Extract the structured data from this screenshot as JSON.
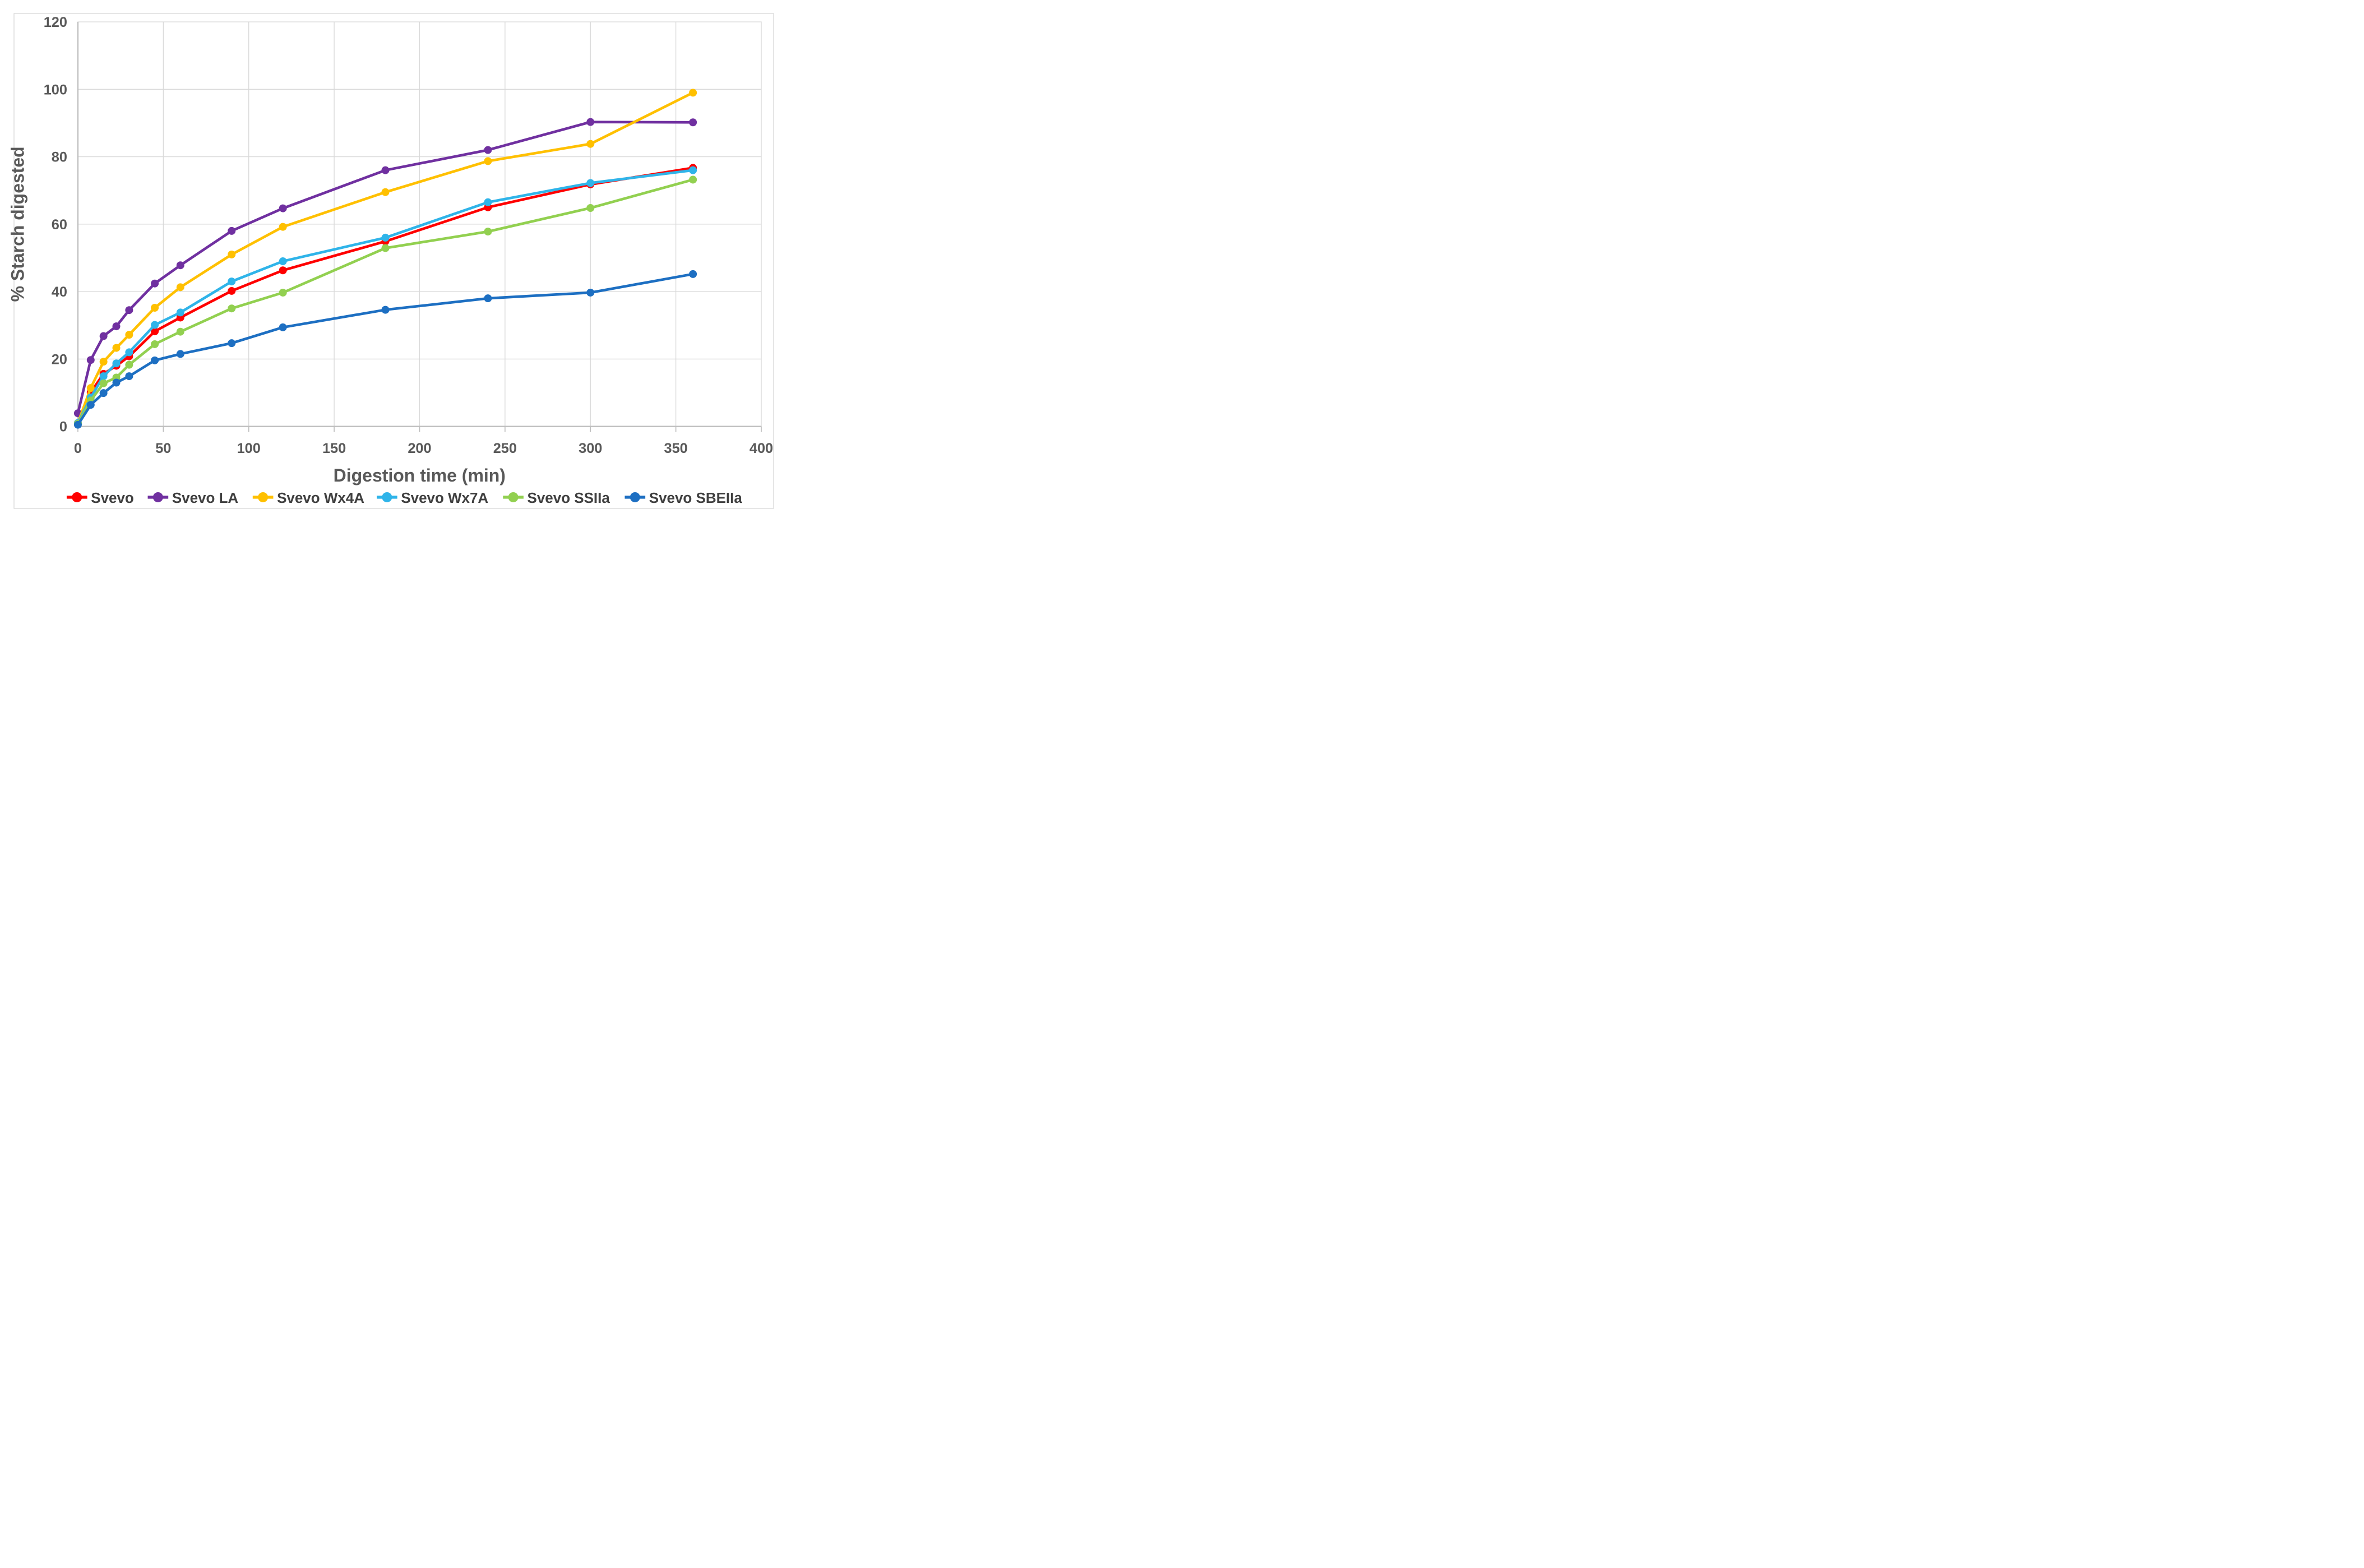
{
  "figure": {
    "description": "Starch digestibility curves of Svevo durum wheat lines"
  },
  "chart_data": {
    "type": "line",
    "title": "",
    "xlabel": "Digestion time (min)",
    "ylabel": "% Starch digested",
    "x": [
      0,
      7.5,
      15,
      22.5,
      30,
      45,
      60,
      90,
      120,
      180,
      240,
      300,
      360
    ],
    "x_ticks": [
      0,
      50,
      100,
      150,
      200,
      250,
      300,
      350,
      400
    ],
    "y_ticks": [
      0,
      20,
      40,
      60,
      80,
      100,
      120
    ],
    "xlim": [
      0,
      400
    ],
    "ylim": [
      0,
      120
    ],
    "grid": true,
    "legend_position": "bottom",
    "marker": "circle",
    "series": [
      {
        "name": "Svevo",
        "color": "#FF0000",
        "values": [
          1.0,
          10.1,
          15.6,
          18.0,
          20.8,
          28.2,
          32.3,
          40.2,
          46.3,
          54.9,
          65.0,
          71.8,
          76.7
        ]
      },
      {
        "name": "Svevo LA",
        "color": "#7030A0",
        "values": [
          3.9,
          19.7,
          26.8,
          29.7,
          34.5,
          42.4,
          47.8,
          58.0,
          64.7,
          76.0,
          82.0,
          90.3,
          90.2
        ]
      },
      {
        "name": "Svevo Wx4A",
        "color": "#FFC000",
        "values": [
          1.0,
          11.4,
          19.2,
          23.3,
          27.2,
          35.2,
          41.3,
          51.0,
          59.2,
          69.5,
          78.7,
          83.8,
          99.0
        ]
      },
      {
        "name": "Svevo Wx7A",
        "color": "#2FB4E9",
        "values": [
          1.0,
          8.6,
          14.9,
          18.7,
          22.0,
          30.1,
          33.8,
          43.0,
          49.0,
          56.0,
          66.5,
          72.2,
          76.0
        ]
      },
      {
        "name": "Svevo SSIIa",
        "color": "#92D050",
        "values": [
          0.8,
          7.7,
          12.8,
          14.5,
          18.3,
          24.4,
          28.1,
          35.0,
          39.7,
          52.9,
          57.8,
          64.8,
          73.2
        ]
      },
      {
        "name": "Svevo SBEIIa",
        "color": "#1D6FC2",
        "values": [
          0.5,
          6.4,
          9.9,
          13.0,
          14.9,
          19.6,
          21.5,
          24.7,
          29.4,
          34.6,
          38.0,
          39.7,
          45.2
        ]
      }
    ],
    "colors": {
      "tick_label": "#595959",
      "axis_title": "#595959",
      "grid": "#D9D9D9",
      "axis_line": "#BFBFBF",
      "legend_text": "#404040",
      "frame": "#D9D9D9",
      "background": "#FFFFFF"
    }
  }
}
